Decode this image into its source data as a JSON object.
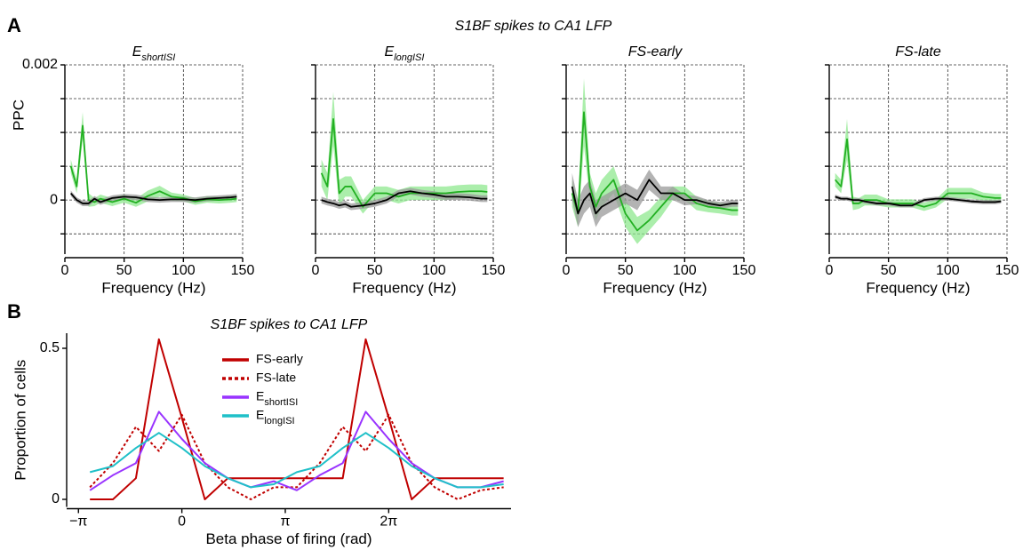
{
  "figure": {
    "panel_a_label": "A",
    "panel_a_title": "S1BF spikes to CA1 LFP",
    "panel_b_label": "B"
  },
  "chart_data": [
    {
      "type": "line",
      "title": "E",
      "title_sub": "shortISI",
      "xlabel": "Frequency (Hz)",
      "ylabel": "PPC",
      "xlim": [
        0,
        150
      ],
      "xticks": [
        0,
        50,
        100,
        150
      ],
      "ylim": [
        -0.0008,
        0.002
      ],
      "yticks": [
        0,
        0.002
      ],
      "yminor": [
        -0.0005,
        0.0005,
        0.001,
        0.0015
      ],
      "grid": true,
      "x": [
        5,
        10,
        15,
        20,
        25,
        30,
        40,
        50,
        60,
        70,
        80,
        90,
        100,
        110,
        120,
        130,
        140,
        145
      ],
      "series": [
        {
          "color": "#22b022",
          "band_color": "#8fe88f",
          "values": [
            0.0005,
            0.0002,
            0.0011,
            0.0,
            -3e-05,
            2e-05,
            -3e-05,
            2e-05,
            -4e-05,
            6e-05,
            0.00013,
            5e-05,
            3e-05,
            -2e-05,
            1e-05,
            0.0,
            1e-05,
            2e-05
          ],
          "error": [
            0.0001,
            0.0001,
            0.0002,
            0.0001,
            6e-05,
            6e-05,
            6e-05,
            6e-05,
            6e-05,
            8e-05,
            8e-05,
            6e-05,
            5e-05,
            5e-05,
            5e-05,
            5e-05,
            5e-05,
            5e-05
          ]
        },
        {
          "color": "#000000",
          "band_color": "#9a9a9a",
          "values": [
            0.0001,
            0.0,
            -5e-05,
            -5e-05,
            2e-05,
            -3e-05,
            3e-05,
            5e-05,
            4e-05,
            1e-05,
            0.0,
            1e-05,
            1e-05,
            0.0,
            2e-05,
            3e-05,
            4e-05,
            5e-05
          ],
          "error": [
            4e-05,
            4e-05,
            4e-05,
            4e-05,
            4e-05,
            4e-05,
            4e-05,
            4e-05,
            4e-05,
            4e-05,
            4e-05,
            4e-05,
            4e-05,
            4e-05,
            4e-05,
            4e-05,
            4e-05,
            4e-05
          ]
        }
      ]
    },
    {
      "type": "line",
      "title": "E",
      "title_sub": "longISI",
      "xlabel": "Frequency (Hz)",
      "xlim": [
        0,
        150
      ],
      "xticks": [
        0,
        50,
        100,
        150
      ],
      "ylim": [
        -0.0008,
        0.002
      ],
      "yminor": [
        -0.0005,
        0,
        0.0005,
        0.001,
        0.0015,
        0.002
      ],
      "grid": true,
      "x": [
        5,
        10,
        15,
        20,
        25,
        30,
        40,
        50,
        60,
        70,
        80,
        90,
        100,
        110,
        120,
        130,
        140,
        145
      ],
      "series": [
        {
          "color": "#22b022",
          "band_color": "#8fe88f",
          "values": [
            0.0004,
            0.0002,
            0.0012,
            0.0001,
            0.0002,
            0.0002,
            -0.0001,
            0.0001,
            0.0001,
            5e-05,
            0.0001,
            0.0001,
            0.0001,
            0.0001,
            0.00012,
            0.00013,
            0.00013,
            0.00012
          ],
          "error": [
            0.0002,
            0.0002,
            0.0004,
            0.0002,
            0.00015,
            0.00015,
            0.0001,
            0.0001,
            0.0001,
            0.0001,
            0.0001,
            0.0001,
            0.0001,
            0.0001,
            0.0001,
            0.0001,
            0.0001,
            0.0001
          ]
        },
        {
          "color": "#000000",
          "band_color": "#9a9a9a",
          "values": [
            0,
            -3e-05,
            -5e-05,
            -8e-05,
            -6e-05,
            -0.0001,
            -8e-05,
            -5e-05,
            0,
            0.0001,
            0.00013,
            0.0001,
            8e-05,
            5e-05,
            5e-05,
            4e-05,
            2e-05,
            2e-05
          ],
          "error": [
            5e-05,
            5e-05,
            5e-05,
            5e-05,
            5e-05,
            5e-05,
            5e-05,
            5e-05,
            5e-05,
            5e-05,
            5e-05,
            5e-05,
            5e-05,
            5e-05,
            5e-05,
            5e-05,
            5e-05,
            5e-05
          ]
        }
      ]
    },
    {
      "type": "line",
      "title": "FS-early",
      "xlabel": "Frequency (Hz)",
      "xlim": [
        0,
        150
      ],
      "xticks": [
        0,
        50,
        100,
        150
      ],
      "ylim": [
        -0.0008,
        0.002
      ],
      "yminor": [
        -0.0005,
        0,
        0.0005,
        0.001,
        0.0015,
        0.002
      ],
      "grid": true,
      "x": [
        5,
        10,
        15,
        20,
        25,
        30,
        40,
        50,
        60,
        70,
        80,
        90,
        100,
        110,
        120,
        130,
        140,
        145
      ],
      "series": [
        {
          "color": "#22b022",
          "band_color": "#8fe88f",
          "values": [
            0.0001,
            -0.0002,
            0.0013,
            0.0002,
            -0.0001,
            0.0001,
            0.0003,
            -0.0002,
            -0.00045,
            -0.0003,
            -0.0001,
            0.0001,
            0.0001,
            -5e-05,
            -0.0001,
            -0.00012,
            -0.00015,
            -0.00015
          ],
          "error": [
            0.0002,
            0.0002,
            0.0005,
            0.0002,
            0.0002,
            0.0002,
            0.0002,
            0.0002,
            0.0002,
            0.00015,
            0.00015,
            0.0001,
            0.0001,
            0.0001,
            8e-05,
            8e-05,
            8e-05,
            8e-05
          ]
        },
        {
          "color": "#000000",
          "band_color": "#9a9a9a",
          "values": [
            0.0002,
            -0.0002,
            0,
            0.0001,
            -0.0002,
            -0.0001,
            0,
            0.0001,
            0,
            0.0003,
            0.0001,
            0.0001,
            0,
            0,
            -5e-05,
            -8e-05,
            -5e-05,
            -5e-05
          ],
          "error": [
            0.0002,
            0.0002,
            0.0002,
            0.0002,
            0.0002,
            0.00015,
            0.00015,
            0.00015,
            0.00015,
            0.00015,
            0.0001,
            0.0001,
            8e-05,
            6e-05,
            5e-05,
            5e-05,
            5e-05,
            5e-05
          ]
        }
      ]
    },
    {
      "type": "line",
      "title": "FS-late",
      "xlabel": "Frequency (Hz)",
      "xlim": [
        0,
        150
      ],
      "xticks": [
        0,
        50,
        100,
        150
      ],
      "ylim": [
        -0.0008,
        0.002
      ],
      "yminor": [
        -0.0005,
        0,
        0.0005,
        0.001,
        0.0015,
        0.002
      ],
      "grid": true,
      "x": [
        5,
        10,
        15,
        20,
        25,
        30,
        40,
        50,
        60,
        70,
        80,
        90,
        100,
        110,
        120,
        130,
        140,
        145
      ],
      "series": [
        {
          "color": "#22b022",
          "band_color": "#8fe88f",
          "values": [
            0.0003,
            0.0002,
            0.0009,
            -5e-05,
            -5e-05,
            0,
            0,
            -5e-05,
            -5e-05,
            -5e-05,
            -0.0001,
            -5e-05,
            0.0001,
            0.0001,
            0.0001,
            5e-05,
            3e-05,
            3e-05
          ],
          "error": [
            0.0001,
            0.0001,
            0.0003,
            0.0001,
            8e-05,
            8e-05,
            8e-05,
            6e-05,
            6e-05,
            6e-05,
            6e-05,
            6e-05,
            8e-05,
            8e-05,
            8e-05,
            6e-05,
            6e-05,
            6e-05
          ]
        },
        {
          "color": "#000000",
          "band_color": "#9a9a9a",
          "values": [
            5e-05,
            2e-05,
            2e-05,
            0,
            0,
            -2e-05,
            -5e-05,
            -5e-05,
            -8e-05,
            -8e-05,
            0,
            2e-05,
            2e-05,
            0,
            -2e-05,
            -3e-05,
            -3e-05,
            -2e-05
          ],
          "error": [
            3e-05,
            3e-05,
            3e-05,
            3e-05,
            3e-05,
            3e-05,
            3e-05,
            3e-05,
            3e-05,
            3e-05,
            3e-05,
            3e-05,
            3e-05,
            3e-05,
            3e-05,
            3e-05,
            3e-05,
            3e-05
          ]
        }
      ]
    },
    {
      "type": "line",
      "title": "S1BF spikes to CA1 LFP",
      "xlabel": "Beta phase of firing (rad)",
      "ylabel": "Proportion of cells",
      "xlim": [
        -3.5,
        10
      ],
      "xticks": [
        {
          "value": -3.14159,
          "label": "−π"
        },
        0,
        {
          "value": 3.14159,
          "label": "π"
        },
        {
          "value": 6.28319,
          "label": "2π"
        }
      ],
      "ylim": [
        -0.025,
        0.55
      ],
      "yticks": [
        0,
        0.5
      ],
      "grid": false,
      "legend": "upper center",
      "x": [
        -2.793,
        -2.094,
        -1.396,
        -0.698,
        0,
        0.698,
        1.396,
        2.094,
        2.793,
        3.491,
        4.189,
        4.887,
        5.585,
        6.283,
        6.981,
        7.679,
        8.378,
        9.076,
        9.774
      ],
      "series": [
        {
          "name": "FS-early",
          "color": "#c00000",
          "values": [
            0,
            0,
            0.07,
            0.53,
            0.27,
            0,
            0.07,
            0.07,
            0.07,
            0.07,
            0.07,
            0.07,
            0.53,
            0.27,
            0,
            0.07,
            0.07,
            0.07,
            0.07
          ]
        },
        {
          "name": "FS-late",
          "color": "#c00000",
          "dashed": true,
          "values": [
            0.04,
            0.12,
            0.24,
            0.16,
            0.28,
            0.12,
            0.04,
            0.0,
            0.04,
            0.04,
            0.12,
            0.24,
            0.16,
            0.28,
            0.12,
            0.04,
            0.0,
            0.03,
            0.04
          ]
        },
        {
          "name": "E",
          "subscript": "shortISI",
          "color": "#9933ff",
          "values": [
            0.03,
            0.08,
            0.12,
            0.29,
            0.2,
            0.12,
            0.07,
            0.04,
            0.06,
            0.03,
            0.08,
            0.12,
            0.29,
            0.2,
            0.12,
            0.07,
            0.04,
            0.04,
            0.06
          ]
        },
        {
          "name": "E",
          "subscript": "longISI",
          "color": "#1fc0c8",
          "values": [
            0.09,
            0.11,
            0.17,
            0.22,
            0.17,
            0.11,
            0.07,
            0.04,
            0.05,
            0.09,
            0.11,
            0.17,
            0.22,
            0.17,
            0.11,
            0.07,
            0.04,
            0.04,
            0.05
          ]
        }
      ]
    }
  ]
}
